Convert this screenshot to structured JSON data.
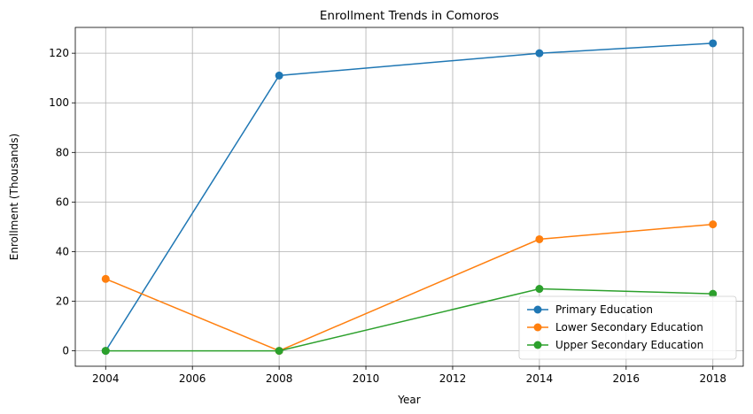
{
  "chart_data": {
    "type": "line",
    "title": "Enrollment Trends in Comoros",
    "xlabel": "Year",
    "ylabel": "Enrollment (Thousands)",
    "xlim": [
      2003.3,
      2018.7
    ],
    "ylim": [
      -6.2,
      130.4
    ],
    "xticks": [
      2004,
      2006,
      2008,
      2010,
      2012,
      2014,
      2016,
      2018
    ],
    "yticks": [
      0,
      20,
      40,
      60,
      80,
      100,
      120
    ],
    "grid": true,
    "legend_position": "lower-right",
    "x": [
      2004,
      2008,
      2014,
      2018
    ],
    "series": [
      {
        "name": "Primary Education",
        "color": "#1f77b4",
        "values": [
          0,
          111,
          120,
          124
        ]
      },
      {
        "name": "Lower Secondary Education",
        "color": "#ff7f0e",
        "values": [
          29,
          0,
          45,
          51
        ]
      },
      {
        "name": "Upper Secondary Education",
        "color": "#2ca02c",
        "values": [
          0,
          0,
          25,
          23
        ]
      }
    ]
  }
}
